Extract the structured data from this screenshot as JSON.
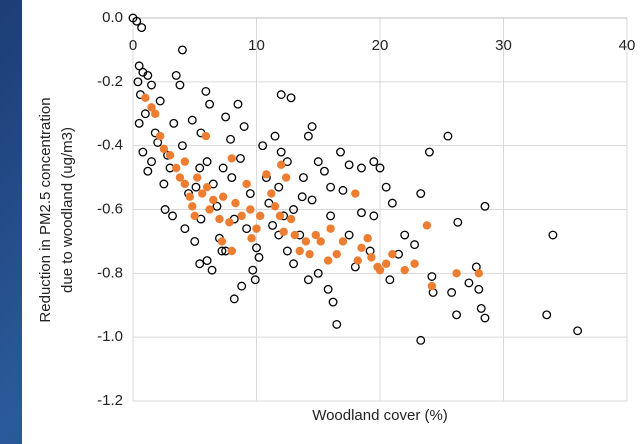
{
  "chart_data": {
    "type": "scatter",
    "x_label": "Woodland cover (%)",
    "y_label": [
      "Reduction in PM2.5 concentration",
      "due to woodland (ug/m3)"
    ],
    "xlim": [
      0,
      40
    ],
    "xticks": [
      0,
      10,
      20,
      30,
      40
    ],
    "ylim": [
      -1.2,
      0
    ],
    "yticks": [
      {
        "value": 0,
        "label": "0.0"
      },
      -0.2,
      -0.4,
      -0.6,
      -0.8,
      {
        "value": -1,
        "label": "-1.0"
      },
      -1.2
    ],
    "grid": true,
    "series": [
      {
        "color": "#000000",
        "marker": "hollow",
        "x": [
          0,
          0.3,
          0.7,
          0.5,
          0.8,
          1.2,
          0.4,
          1.5,
          0.6,
          2.2,
          1,
          0.5,
          1.8,
          0.8,
          1.2,
          3.5,
          4,
          3.8,
          5.9,
          6.2,
          8.5,
          7.5,
          12,
          12.8,
          9,
          11.5,
          14.5,
          14.2,
          10.5,
          12,
          15,
          16.8,
          17.5,
          18.5,
          19.5,
          20,
          24,
          25.5,
          20.5,
          21,
          23.3,
          28.5,
          18.5,
          19.5,
          16,
          14.5,
          13,
          11,
          9.5,
          8,
          6,
          4,
          3,
          2.5,
          2.6,
          3.2,
          4.2,
          5,
          5.5,
          4.5,
          5.4,
          6.8,
          7,
          7.5,
          8.2,
          9.2,
          10,
          9.7,
          9.9,
          10.2,
          8.8,
          8.2,
          7.2,
          6,
          5.4,
          6.4,
          11.8,
          12.5,
          13.5,
          13,
          14.2,
          15,
          15.8,
          16.2,
          16.5,
          18,
          19.2,
          20.8,
          21.5,
          22,
          22.8,
          23.3,
          24.2,
          24.3,
          25.8,
          26.2,
          27.2,
          26.3,
          27.8,
          28,
          28.2,
          28.5,
          33.5,
          34,
          36,
          10.8,
          11.8,
          12.5,
          13.8,
          15.5,
          17,
          1.5,
          2,
          3.3,
          4.8,
          5.5,
          7.9,
          8.7,
          2.8,
          5.1,
          6.5,
          7.3,
          12.2,
          13.7,
          11.3,
          16,
          17.5
        ],
        "values": [
          0,
          -0.01,
          -0.03,
          -0.15,
          -0.17,
          -0.18,
          -0.2,
          -0.21,
          -0.24,
          -0.26,
          -0.3,
          -0.33,
          -0.36,
          -0.42,
          -0.48,
          -0.18,
          -0.1,
          -0.21,
          -0.23,
          -0.27,
          -0.27,
          -0.31,
          -0.24,
          -0.25,
          -0.34,
          -0.37,
          -0.34,
          -0.37,
          -0.4,
          -0.42,
          -0.45,
          -0.42,
          -0.46,
          -0.47,
          -0.45,
          -0.47,
          -0.42,
          -0.37,
          -0.53,
          -0.58,
          -0.55,
          -0.59,
          -0.61,
          -0.62,
          -0.62,
          -0.57,
          -0.6,
          -0.58,
          -0.55,
          -0.5,
          -0.45,
          -0.4,
          -0.47,
          -0.52,
          -0.6,
          -0.62,
          -0.66,
          -0.7,
          -0.63,
          -0.55,
          -0.47,
          -0.59,
          -0.69,
          -0.73,
          -0.63,
          -0.66,
          -0.72,
          -0.79,
          -0.82,
          -0.75,
          -0.84,
          -0.88,
          -0.73,
          -0.76,
          -0.77,
          -0.79,
          -0.68,
          -0.73,
          -0.68,
          -0.77,
          -0.82,
          -0.8,
          -0.85,
          -0.89,
          -0.96,
          -0.78,
          -0.73,
          -0.82,
          -0.74,
          -0.68,
          -0.71,
          -1.01,
          -0.81,
          -0.86,
          -0.86,
          -0.93,
          -0.83,
          -0.64,
          -0.78,
          -0.85,
          -0.91,
          -0.94,
          -0.93,
          -0.68,
          -0.98,
          -0.5,
          -0.53,
          -0.45,
          -0.5,
          -0.48,
          -0.54,
          -0.45,
          -0.39,
          -0.33,
          -0.32,
          -0.36,
          -0.38,
          -0.44,
          -0.43,
          -0.53,
          -0.52,
          -0.47,
          -0.62,
          -0.56,
          -0.65,
          -0.53,
          -0.68
        ]
      },
      {
        "color": "#ed7d31",
        "marker": "filled",
        "x": [
          1.5,
          1,
          1.8,
          2.2,
          2.5,
          3,
          3.5,
          3.8,
          4.2,
          4.6,
          4.8,
          5.2,
          5.6,
          6,
          6.2,
          6.5,
          5.9,
          7,
          7.3,
          7.8,
          8,
          8.3,
          8.8,
          9.2,
          9.5,
          10,
          10.3,
          10.8,
          11.2,
          11.5,
          12,
          12.4,
          11.9,
          12.2,
          12.8,
          13.1,
          13.5,
          14,
          14.3,
          14.8,
          15.2,
          15.8,
          16,
          16.5,
          17,
          18,
          18.2,
          18.5,
          19.3,
          19.8,
          20,
          20.5,
          21,
          22,
          22.8,
          23.8,
          24.2,
          26.2,
          28,
          19,
          9.6,
          4.2,
          5,
          7.2,
          8
        ],
        "values": [
          -0.28,
          -0.25,
          -0.3,
          -0.37,
          -0.41,
          -0.43,
          -0.47,
          -0.5,
          -0.52,
          -0.56,
          -0.59,
          -0.5,
          -0.55,
          -0.53,
          -0.6,
          -0.57,
          -0.37,
          -0.63,
          -0.56,
          -0.64,
          -0.44,
          -0.58,
          -0.62,
          -0.52,
          -0.6,
          -0.66,
          -0.62,
          -0.49,
          -0.55,
          -0.59,
          -0.46,
          -0.5,
          -0.62,
          -0.67,
          -0.63,
          -0.68,
          -0.73,
          -0.7,
          -0.74,
          -0.68,
          -0.7,
          -0.76,
          -0.66,
          -0.74,
          -0.7,
          -0.55,
          -0.76,
          -0.72,
          -0.75,
          -0.78,
          -0.79,
          -0.77,
          -0.74,
          -0.79,
          -0.77,
          -0.65,
          -0.84,
          -0.8,
          -0.8,
          -0.69,
          -0.69,
          -0.45,
          -0.62,
          -0.7,
          -0.73
        ]
      }
    ]
  }
}
